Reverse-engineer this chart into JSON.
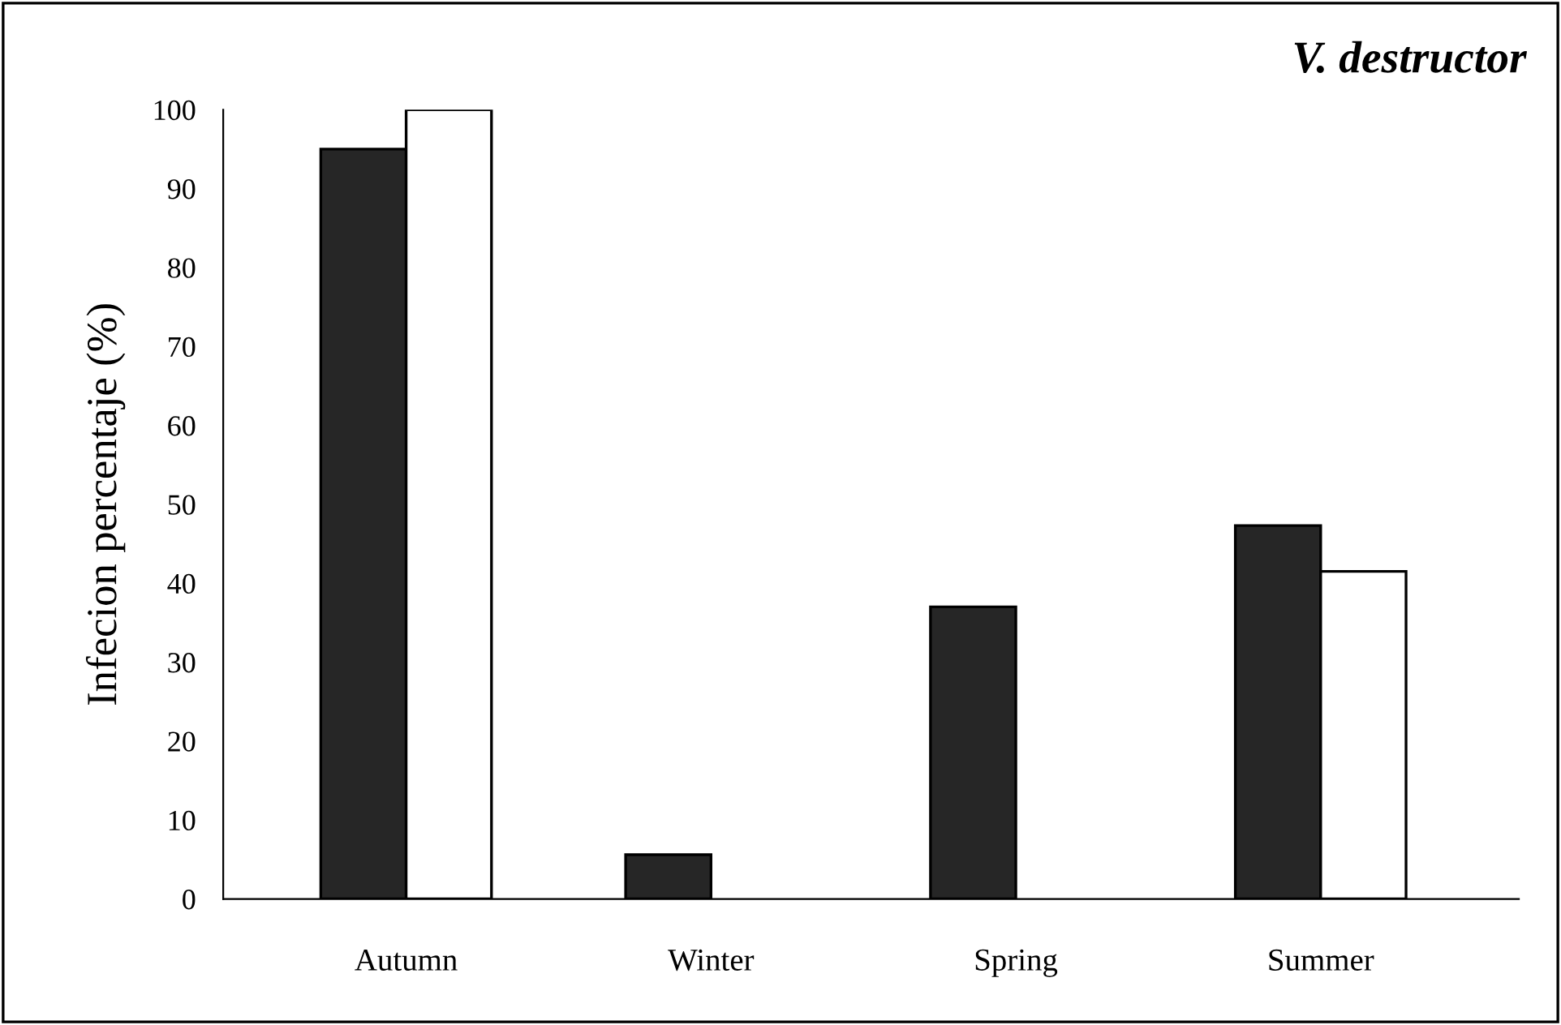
{
  "chart_data": {
    "type": "bar",
    "title": "V. destructor",
    "ylabel": "Infecion percentaje (%)",
    "categories": [
      "Autumn",
      "Winter",
      "Spring",
      "Summer"
    ],
    "series": [
      {
        "color": "#262626",
        "values": [
          95,
          5.6,
          37,
          47.3
        ]
      },
      {
        "color": "#ffffff",
        "values": [
          100,
          null,
          null,
          41.5
        ]
      }
    ],
    "ylim": [
      0,
      100
    ],
    "yticks": [
      0,
      10,
      20,
      30,
      40,
      50,
      60,
      70,
      80,
      90,
      100
    ],
    "grid": false
  }
}
